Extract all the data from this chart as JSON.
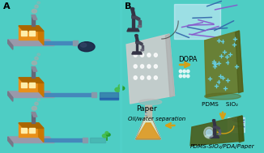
{
  "bg_color": "#4ECDC4",
  "left_label": "A",
  "right_label": "B",
  "text_paper": "Paper",
  "text_dopa": "DOPA",
  "text_pdms_sio2": "PDMS    SiO₂",
  "text_oil_water": "Oil/water separation",
  "text_bottom": "PDMS-SiO₂/PDA/Paper",
  "arrow_yellow": "#D4A017",
  "fiber_purple": "#8855CC",
  "fiber_blue": "#3366AA",
  "nano_cyan": "#66CCDD",
  "paper_light": "#C8C8C8",
  "paper_mid": "#B8B8B0",
  "paper_dark": "#6B7A30",
  "paper_dark2": "#4A6020",
  "factory_orange": "#E8901A",
  "factory_roof": "#774400",
  "factory_base": "#9999AA",
  "factory_wall": "#BBBBCC",
  "chimney": "#666677",
  "smoke": "#AAAAAA",
  "pipe_blue": "#4488BB",
  "pipe_gray": "#8899AA",
  "oil_dark": "#1A2244",
  "water_teal": "#44AAAA",
  "plant_green": "#44BB44",
  "plant_dark": "#229922",
  "flask_body": "#EEE8CC",
  "flask_liquid": "#DD9922",
  "flask_neck": "#DDCCAA",
  "flask_grad": "#6699BB",
  "microscope_dark": "#333344",
  "fiber_bg": "#CCCCDD"
}
